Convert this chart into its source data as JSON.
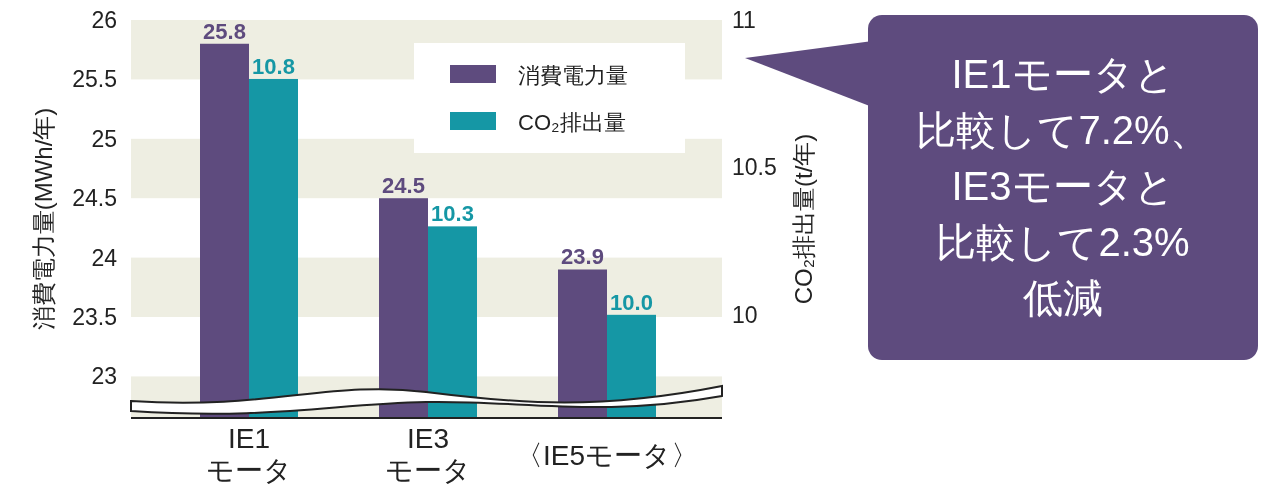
{
  "chart_data": {
    "type": "bar",
    "categories": [
      "IE1\nモータ",
      "IE3\nモータ",
      "〈IE5モータ〉"
    ],
    "series": [
      {
        "name": "消費電力量",
        "color": "#5e4b7e",
        "values": [
          25.8,
          24.5,
          23.9
        ],
        "value_labels": [
          "25.8",
          "24.5",
          "23.9"
        ]
      },
      {
        "name": "CO₂排出量",
        "color": "#1597a5",
        "values": [
          10.8,
          10.3,
          10.0
        ],
        "value_labels": [
          "10.8",
          "10.3",
          "10.0"
        ],
        "axis": "y2"
      }
    ],
    "ylabel": "消費電力量(MWh/年)",
    "y2label": "CO₂排出量(t/年)",
    "ylim": [
      22.65,
      26
    ],
    "yticks": [
      23,
      23.5,
      24,
      24.5,
      25,
      25.5,
      26
    ],
    "y2lim": [
      9.65,
      11
    ],
    "y2ticks": [
      10,
      10.5,
      11
    ],
    "legend": "top right",
    "bands": [
      {
        "axis": "y",
        "from": 25.5,
        "to": 26,
        "color": "#eeeee2"
      },
      {
        "axis": "y",
        "from": 24.5,
        "to": 25,
        "color": "#eeeee2"
      },
      {
        "axis": "y",
        "from": 23.5,
        "to": 24,
        "color": "#eeeee2"
      },
      {
        "axis": "y",
        "from": 22.65,
        "to": 23,
        "color": "#eeeee2"
      }
    ],
    "annotations": [
      "IE1モータと",
      "比較して7.2%、",
      "IE3モータと",
      "比較して2.3%",
      "低減"
    ]
  }
}
